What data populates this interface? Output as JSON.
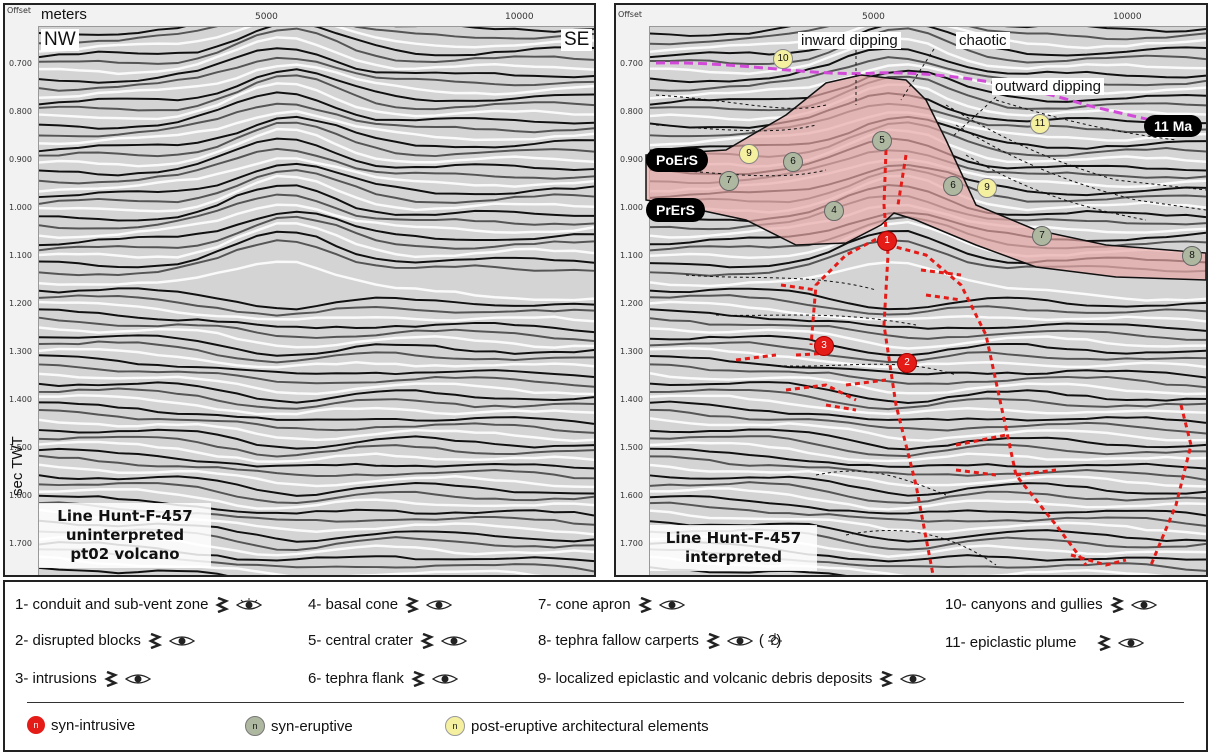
{
  "axis": {
    "top_left_unit": "meters",
    "offset_label": "Offset",
    "x_ticks": [
      "5000",
      "10000"
    ],
    "y_ticks": [
      "0.700",
      "0.800",
      "0.900",
      "1.000",
      "1.100",
      "1.200",
      "1.300",
      "1.400",
      "1.500",
      "1.600",
      "1.700"
    ],
    "y_title": "sec TWT"
  },
  "left_panel": {
    "nw": "NW",
    "se": "SE",
    "title_lines": [
      "Line Hunt-F-457",
      "uninterpreted",
      "pt02 volcano"
    ]
  },
  "right_panel": {
    "title_lines": [
      "Line Hunt-F-457",
      "interpreted"
    ],
    "annotations": {
      "inward": "inward dipping",
      "chaotic": "chaotic",
      "outward": "outward dipping"
    },
    "badges": {
      "ma": "11 Ma",
      "poers": "PoErS",
      "prers": "PrErS"
    },
    "numbers": {
      "red": [
        "1",
        "2",
        "3"
      ],
      "green": [
        "4",
        "5",
        "6",
        "6",
        "7",
        "7",
        "8"
      ],
      "yellow": [
        "9",
        "9",
        "10",
        "11"
      ]
    }
  },
  "legend": {
    "items": [
      "1- conduit and sub-vent zone",
      "2- disrupted blocks",
      "3- intrusions",
      "4- basal cone",
      "5- central crater",
      "6- tephra flank",
      "7- cone apron",
      "8- tephra fallow carperts",
      "9- localized epiclastic and volcanic debris deposits",
      "10- canyons and gullies",
      "11- epiclastic plume"
    ],
    "extra_8": "( ?)",
    "key": {
      "symbol": "n",
      "syn_intrusive": "syn-intrusive",
      "syn_eruptive": "syn-eruptive",
      "post_eruptive": "post-eruptive architectural elements"
    }
  },
  "colors": {
    "red": "#e41b17",
    "green": "#aeb8a0",
    "yellow": "#f4f0a0",
    "magenta": "#d24ad8",
    "cone": "#e8a8a8"
  }
}
